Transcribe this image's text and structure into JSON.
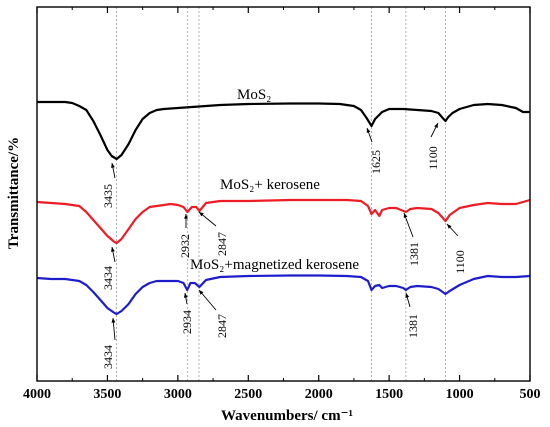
{
  "chart_data": {
    "type": "line",
    "xlabel": "Wavenumbers/ cm⁻¹",
    "ylabel": "Transmittance/%",
    "xlim": [
      4000,
      500
    ],
    "x_ticks": [
      "4000",
      "3500",
      "3000",
      "2500",
      "2000",
      "1500",
      "1000",
      "500"
    ],
    "y_ticks_shown": false,
    "reference_lines": [
      3435,
      2930,
      2850,
      1625,
      1381,
      1100
    ],
    "series": [
      {
        "name": "MoS₂",
        "color": "#000000",
        "points": [
          [
            4000,
            102
          ],
          [
            3900,
            102
          ],
          [
            3800,
            102
          ],
          [
            3750,
            103
          ],
          [
            3700,
            106
          ],
          [
            3650,
            110
          ],
          [
            3600,
            121
          ],
          [
            3550,
            135
          ],
          [
            3500,
            150
          ],
          [
            3470,
            156
          ],
          [
            3435,
            159
          ],
          [
            3400,
            155
          ],
          [
            3350,
            144
          ],
          [
            3300,
            130
          ],
          [
            3250,
            119
          ],
          [
            3200,
            113
          ],
          [
            3150,
            110
          ],
          [
            3100,
            109
          ],
          [
            3000,
            108
          ],
          [
            2900,
            107
          ],
          [
            2800,
            106
          ],
          [
            2700,
            105
          ],
          [
            2500,
            104
          ],
          [
            2200,
            103.5
          ],
          [
            2000,
            103.5
          ],
          [
            1850,
            104
          ],
          [
            1750,
            106
          ],
          [
            1700,
            110
          ],
          [
            1660,
            118
          ],
          [
            1625,
            126
          ],
          [
            1600,
            119
          ],
          [
            1550,
            112
          ],
          [
            1500,
            109
          ],
          [
            1450,
            109
          ],
          [
            1400,
            109
          ],
          [
            1300,
            110
          ],
          [
            1200,
            111
          ],
          [
            1150,
            113
          ],
          [
            1120,
            118
          ],
          [
            1100,
            121
          ],
          [
            1080,
            117
          ],
          [
            1050,
            113
          ],
          [
            1000,
            109
          ],
          [
            900,
            105
          ],
          [
            800,
            104
          ],
          [
            700,
            105
          ],
          [
            600,
            108
          ],
          [
            550,
            112
          ],
          [
            500,
            112
          ]
        ],
        "annotations": [
          {
            "text": "3435",
            "x": 3435
          },
          {
            "text": "1625",
            "x": 1625
          },
          {
            "text": "1100",
            "x": 1100
          }
        ]
      },
      {
        "name": "MoS₂+ kerosene",
        "color": "#ee1c24",
        "points": [
          [
            4000,
            202
          ],
          [
            3900,
            203
          ],
          [
            3800,
            204
          ],
          [
            3700,
            206
          ],
          [
            3650,
            212
          ],
          [
            3600,
            220
          ],
          [
            3550,
            228
          ],
          [
            3500,
            236
          ],
          [
            3450,
            242
          ],
          [
            3434,
            243
          ],
          [
            3400,
            239
          ],
          [
            3350,
            229
          ],
          [
            3300,
            219
          ],
          [
            3250,
            212
          ],
          [
            3200,
            207
          ],
          [
            3150,
            206
          ],
          [
            3100,
            205
          ],
          [
            3050,
            204
          ],
          [
            3000,
            205
          ],
          [
            2960,
            207
          ],
          [
            2932,
            212
          ],
          [
            2900,
            207
          ],
          [
            2870,
            207
          ],
          [
            2847,
            211
          ],
          [
            2800,
            203
          ],
          [
            2700,
            201
          ],
          [
            2500,
            201
          ],
          [
            2200,
            200
          ],
          [
            2000,
            200
          ],
          [
            1800,
            200
          ],
          [
            1700,
            201
          ],
          [
            1650,
            206
          ],
          [
            1625,
            214
          ],
          [
            1600,
            210
          ],
          [
            1570,
            216
          ],
          [
            1550,
            210
          ],
          [
            1500,
            208
          ],
          [
            1450,
            208
          ],
          [
            1381,
            212
          ],
          [
            1350,
            209
          ],
          [
            1300,
            208
          ],
          [
            1200,
            209
          ],
          [
            1150,
            213
          ],
          [
            1100,
            221
          ],
          [
            1070,
            215
          ],
          [
            1000,
            208
          ],
          [
            900,
            205
          ],
          [
            800,
            203
          ],
          [
            700,
            204
          ],
          [
            600,
            204
          ],
          [
            500,
            200
          ]
        ],
        "annotations": [
          {
            "text": "3434",
            "x": 3434
          },
          {
            "text": "2932",
            "x": 2932
          },
          {
            "text": "2847",
            "x": 2847
          },
          {
            "text": "1381",
            "x": 1381
          },
          {
            "text": "1100",
            "x": 1100
          }
        ]
      },
      {
        "name": "MoS₂+magnetized kerosene",
        "color": "#1d1dcc",
        "points": [
          [
            4000,
            278
          ],
          [
            3900,
            279
          ],
          [
            3800,
            279
          ],
          [
            3700,
            281
          ],
          [
            3650,
            285
          ],
          [
            3600,
            292
          ],
          [
            3550,
            300
          ],
          [
            3500,
            308
          ],
          [
            3450,
            313
          ],
          [
            3434,
            314
          ],
          [
            3400,
            311
          ],
          [
            3350,
            304
          ],
          [
            3300,
            294
          ],
          [
            3250,
            287
          ],
          [
            3200,
            283
          ],
          [
            3150,
            281
          ],
          [
            3100,
            281
          ],
          [
            3000,
            281
          ],
          [
            2960,
            283
          ],
          [
            2934,
            290
          ],
          [
            2910,
            283
          ],
          [
            2880,
            283
          ],
          [
            2847,
            287
          ],
          [
            2800,
            280
          ],
          [
            2700,
            277
          ],
          [
            2500,
            276
          ],
          [
            2200,
            275.5
          ],
          [
            2000,
            275.5
          ],
          [
            1800,
            276
          ],
          [
            1700,
            277
          ],
          [
            1650,
            281
          ],
          [
            1625,
            290
          ],
          [
            1600,
            286
          ],
          [
            1570,
            285
          ],
          [
            1550,
            288
          ],
          [
            1500,
            286
          ],
          [
            1450,
            286
          ],
          [
            1400,
            288
          ],
          [
            1381,
            290
          ],
          [
            1350,
            287
          ],
          [
            1300,
            286
          ],
          [
            1200,
            287
          ],
          [
            1150,
            289
          ],
          [
            1100,
            294
          ],
          [
            1070,
            291
          ],
          [
            1000,
            285
          ],
          [
            900,
            279
          ],
          [
            800,
            276
          ],
          [
            700,
            277
          ],
          [
            600,
            277
          ],
          [
            500,
            276
          ]
        ],
        "annotations": [
          {
            "text": "3434",
            "x": 3434
          },
          {
            "text": "2934",
            "x": 2934
          },
          {
            "text": "2847",
            "x": 2847
          },
          {
            "text": "1381",
            "x": 1381
          }
        ]
      }
    ]
  }
}
